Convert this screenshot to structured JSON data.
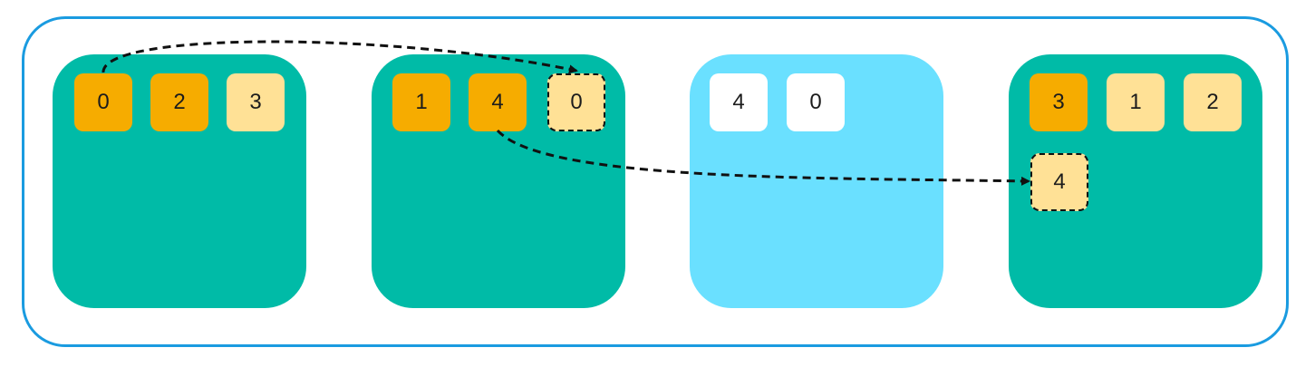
{
  "colors": {
    "frame_border": "#1a9be0",
    "node_active": "#00bba7",
    "node_inactive": "#6ae0ff",
    "chip_strong": "#f6ac00",
    "chip_light": "#ffe196",
    "chip_white": "#ffffff",
    "arrow": "#111111"
  },
  "nodes": [
    {
      "name": "node-1",
      "state": "active",
      "chips": [
        {
          "label": "0",
          "style": "strong"
        },
        {
          "label": "2",
          "style": "strong"
        },
        {
          "label": "3",
          "style": "light"
        }
      ]
    },
    {
      "name": "node-2",
      "state": "active",
      "chips": [
        {
          "label": "1",
          "style": "strong"
        },
        {
          "label": "4",
          "style": "strong"
        },
        {
          "label": "0",
          "style": "light",
          "dashed": true
        }
      ]
    },
    {
      "name": "node-3",
      "state": "inactive",
      "chips": [
        {
          "label": "4",
          "style": "white"
        },
        {
          "label": "0",
          "style": "white"
        }
      ]
    },
    {
      "name": "node-4",
      "state": "active",
      "chips": [
        {
          "label": "3",
          "style": "strong"
        },
        {
          "label": "1",
          "style": "light"
        },
        {
          "label": "2",
          "style": "light"
        },
        {
          "label": "4",
          "style": "light",
          "dashed": true
        }
      ]
    }
  ],
  "arrows": [
    {
      "from": "node-1 chip 0",
      "to": "node-2 chip 0 (replica)"
    },
    {
      "from": "node-2 chip 4",
      "to": "node-4 chip 4 (replica)"
    }
  ]
}
